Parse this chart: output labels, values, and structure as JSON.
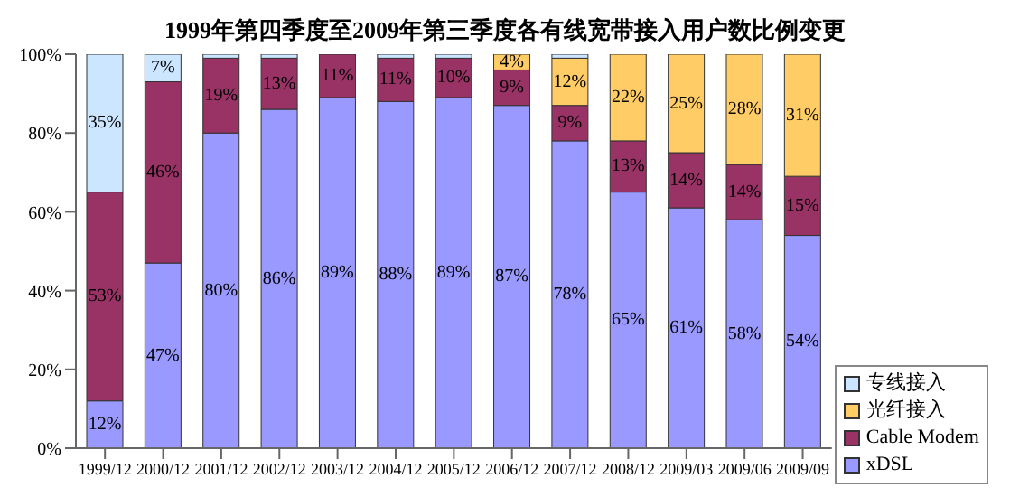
{
  "chart_data": {
    "type": "bar",
    "title": "1999年第四季度至2009年第三季度各有线宽带接入用户数比例变更",
    "stacked": true,
    "categories": [
      "1999/12",
      "2000/12",
      "2001/12",
      "2002/12",
      "2003/12",
      "2004/12",
      "2005/12",
      "2006/12",
      "2007/12",
      "2008/12",
      "2009/03",
      "2009/06",
      "2009/09"
    ],
    "series": [
      {
        "name": "xDSL",
        "color": "#9999ff",
        "values": [
          12,
          47,
          80,
          86,
          89,
          88,
          89,
          87,
          78,
          65,
          61,
          58,
          54
        ],
        "value_labels": [
          "12%",
          "47%",
          "80%",
          "86%",
          "89%",
          "88%",
          "89%",
          "87%",
          "78%",
          "65%",
          "61%",
          "58%",
          "54%"
        ]
      },
      {
        "name": "Cable Modem",
        "color": "#993366",
        "values": [
          53,
          46,
          19,
          13,
          11,
          11,
          10,
          9,
          9,
          13,
          14,
          14,
          15
        ],
        "value_labels": [
          "53%",
          "46%",
          "19%",
          "13%",
          "11%",
          "11%",
          "10%",
          "9%",
          "9%",
          "13%",
          "14%",
          "14%",
          "15%"
        ]
      },
      {
        "name": "光纤接入",
        "color": "#ffcc66",
        "values": [
          0,
          0,
          0,
          0,
          0,
          0,
          0,
          4,
          12,
          22,
          25,
          28,
          31
        ],
        "value_labels": [
          null,
          null,
          null,
          null,
          null,
          null,
          null,
          "4%",
          "12%",
          "22%",
          "25%",
          "28%",
          "31%"
        ]
      },
      {
        "name": "专线接入",
        "color": "#cce6ff",
        "values": [
          35,
          7,
          1,
          1,
          0,
          1,
          1,
          0,
          1,
          0,
          0,
          0,
          0
        ],
        "value_labels": [
          "35%",
          "7%",
          null,
          null,
          null,
          null,
          null,
          null,
          null,
          null,
          null,
          null,
          null
        ]
      }
    ],
    "ylim": [
      0,
      100
    ],
    "yticks": [
      {
        "value": 0,
        "label": "0%"
      },
      {
        "value": 20,
        "label": "20%"
      },
      {
        "value": 40,
        "label": "40%"
      },
      {
        "value": 60,
        "label": "60%"
      },
      {
        "value": 80,
        "label": "80%"
      },
      {
        "value": 100,
        "label": "100%"
      }
    ],
    "grid": false,
    "legend": "bottom right"
  }
}
